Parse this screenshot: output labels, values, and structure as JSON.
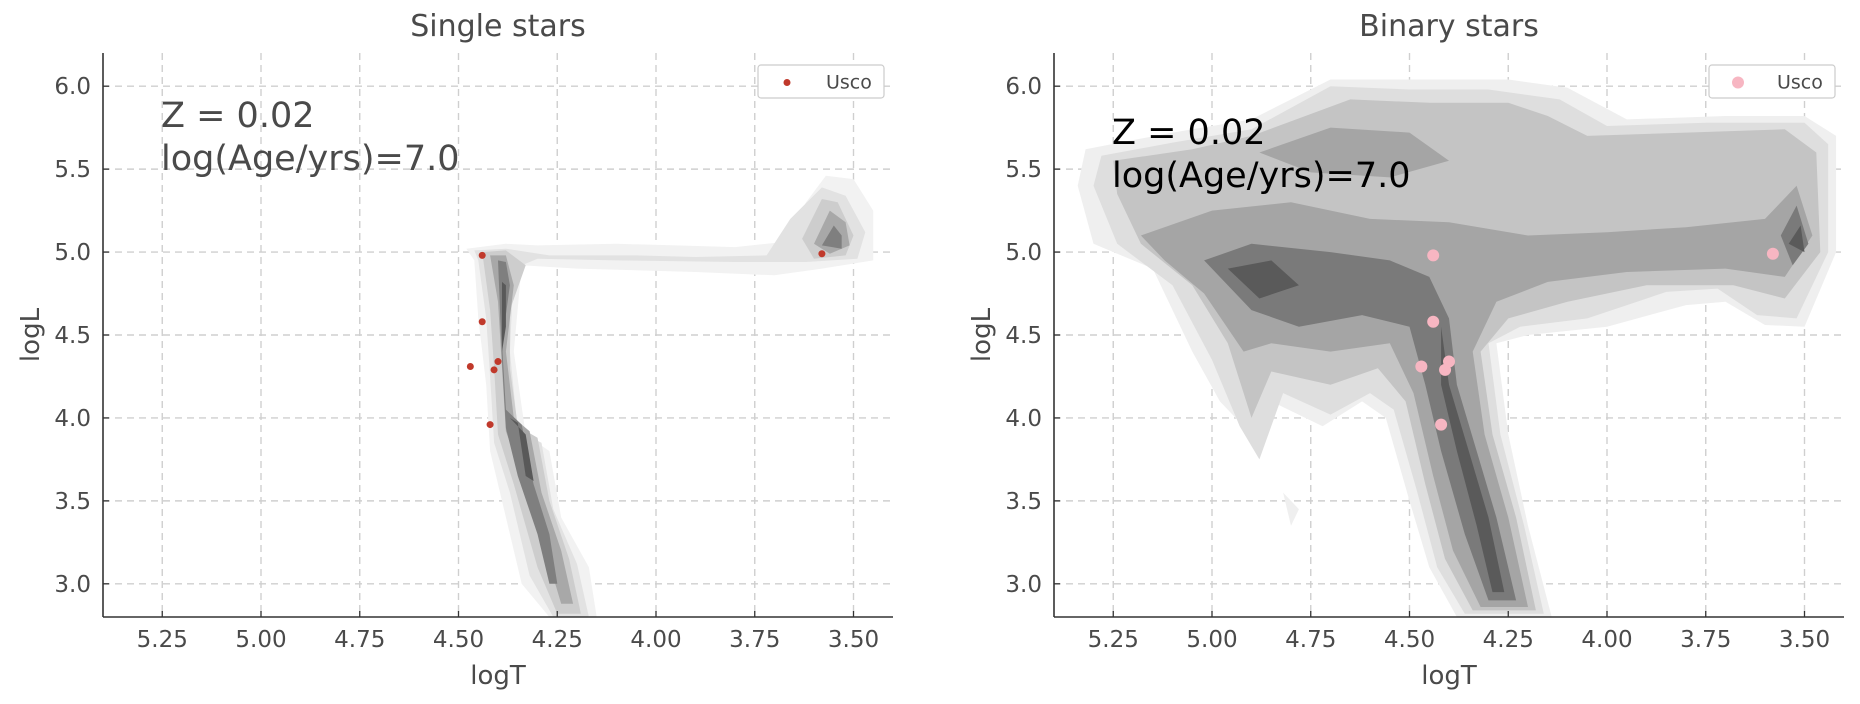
{
  "chart_data": [
    {
      "type": "scatter",
      "title": "Single stars",
      "xlabel": "logT",
      "ylabel": "logL",
      "xlim": [
        5.4,
        3.4
      ],
      "ylim": [
        2.8,
        6.2
      ],
      "x_ticks": [
        "5.25",
        "5.00",
        "4.75",
        "4.50",
        "4.25",
        "4.00",
        "3.75",
        "3.50"
      ],
      "y_ticks": [
        "3.0",
        "3.5",
        "4.0",
        "4.5",
        "5.0",
        "5.5",
        "6.0"
      ],
      "x_axis_inverted": true,
      "grid": true,
      "legend_position": "top-right",
      "annotation": [
        "Z = 0.02",
        "log(Age/yrs)=7.0"
      ],
      "series": [
        {
          "name": "Usco",
          "color": "#c0392b",
          "points": [
            {
              "x": 4.44,
              "y": 4.98
            },
            {
              "x": 4.44,
              "y": 4.58
            },
            {
              "x": 4.4,
              "y": 4.34
            },
            {
              "x": 4.41,
              "y": 4.29
            },
            {
              "x": 4.47,
              "y": 4.31
            },
            {
              "x": 4.42,
              "y": 3.96
            },
            {
              "x": 3.58,
              "y": 4.99
            }
          ]
        }
      ],
      "contour_density": {
        "description_levels": 6,
        "colors": [
          "#f2f2f2",
          "#e2e2e2",
          "#cdcdcd",
          "#a8a8a8",
          "#7f7f7f",
          "#595959"
        ]
      }
    },
    {
      "type": "scatter",
      "title": "Binary stars",
      "xlabel": "logT",
      "ylabel": "logL",
      "xlim": [
        5.4,
        3.4
      ],
      "ylim": [
        2.8,
        6.2
      ],
      "x_ticks": [
        "5.25",
        "5.00",
        "4.75",
        "4.50",
        "4.25",
        "4.00",
        "3.75",
        "3.50"
      ],
      "y_ticks": [
        "3.0",
        "3.5",
        "4.0",
        "4.5",
        "5.0",
        "5.5",
        "6.0"
      ],
      "x_axis_inverted": true,
      "grid": true,
      "legend_position": "top-right",
      "annotation": [
        "Z = 0.02",
        "log(Age/yrs)=7.0"
      ],
      "series": [
        {
          "name": "Usco",
          "color": "#f7b6c2",
          "points": [
            {
              "x": 4.44,
              "y": 4.98
            },
            {
              "x": 4.44,
              "y": 4.58
            },
            {
              "x": 4.4,
              "y": 4.34
            },
            {
              "x": 4.41,
              "y": 4.29
            },
            {
              "x": 4.47,
              "y": 4.31
            },
            {
              "x": 4.42,
              "y": 3.96
            },
            {
              "x": 3.58,
              "y": 4.99
            }
          ]
        }
      ],
      "contour_density": {
        "description_levels": 6,
        "colors": [
          "#efefef",
          "#dedede",
          "#c4c4c4",
          "#a5a5a5",
          "#7a7a7a",
          "#5a5a5a"
        ]
      }
    }
  ]
}
